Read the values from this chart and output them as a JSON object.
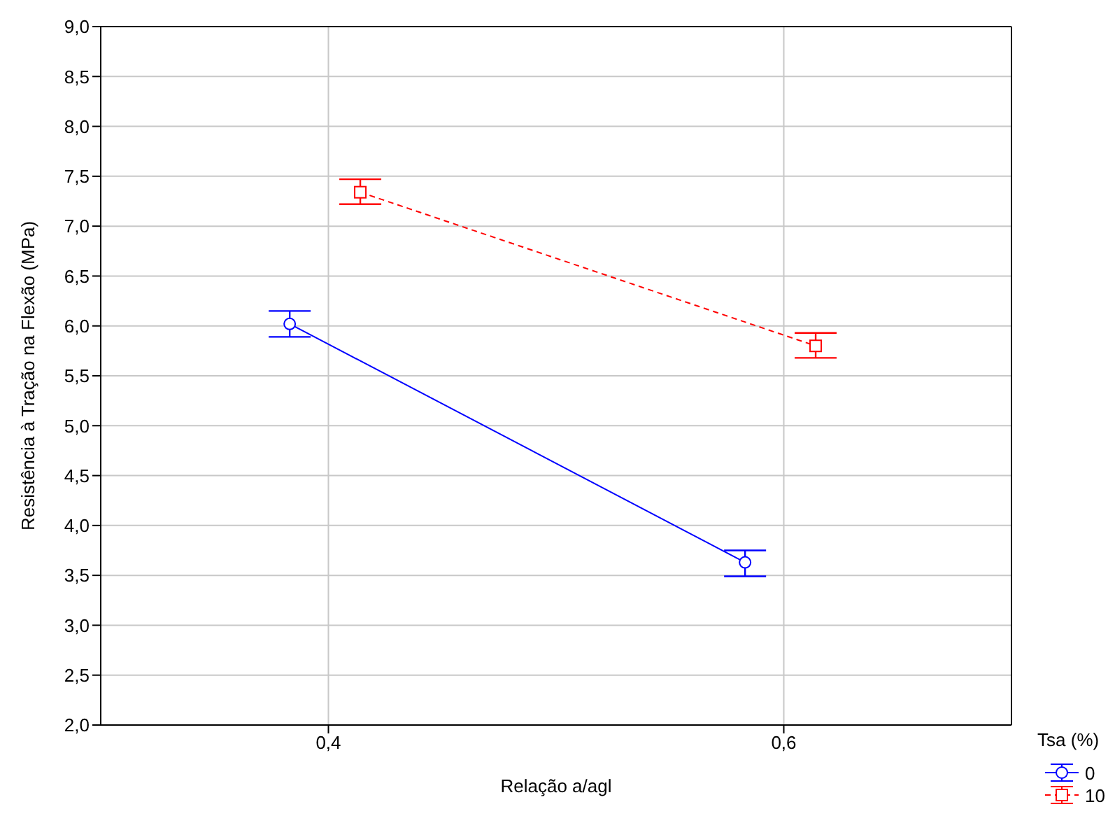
{
  "chart_data": {
    "type": "line",
    "xlabel": "Relação a/agl",
    "ylabel": "Resistência à Tração na Flexão (MPa)",
    "legend_title": "Tsa (%)",
    "xlim": [
      0.3,
      0.7
    ],
    "xticks": [
      {
        "value": 0.4,
        "label": "0,4"
      },
      {
        "value": 0.6,
        "label": "0,6"
      }
    ],
    "ylim": [
      2,
      9
    ],
    "yticks": [
      {
        "value": 2,
        "label": "2,0"
      },
      {
        "value": 2.5,
        "label": "2,5"
      },
      {
        "value": 3,
        "label": "3,0"
      },
      {
        "value": 3.5,
        "label": "3,5"
      },
      {
        "value": 4,
        "label": "4,0"
      },
      {
        "value": 4.5,
        "label": "4,5"
      },
      {
        "value": 5,
        "label": "5,0"
      },
      {
        "value": 5.5,
        "label": "5,5"
      },
      {
        "value": 6,
        "label": "6,0"
      },
      {
        "value": 6.5,
        "label": "6,5"
      },
      {
        "value": 7,
        "label": "7,0"
      },
      {
        "value": 7.5,
        "label": "7,5"
      },
      {
        "value": 8,
        "label": "8,0"
      },
      {
        "value": 8.5,
        "label": "8,5"
      },
      {
        "value": 9,
        "label": "9,0"
      }
    ],
    "grid": true,
    "legend": "bottom right",
    "series": [
      {
        "name": "0",
        "color": "#0000ff",
        "x": [
          0.383,
          0.583
        ],
        "values": [
          6.02,
          3.63
        ],
        "errors": [
          [
            5.89,
            6.15
          ],
          [
            3.49,
            3.75
          ]
        ],
        "marker": "circle",
        "line_style": "solid"
      },
      {
        "name": "10",
        "color": "#ff0000",
        "x": [
          0.414,
          0.614
        ],
        "values": [
          7.34,
          5.8
        ],
        "errors": [
          [
            7.22,
            7.47
          ],
          [
            5.68,
            5.93
          ]
        ],
        "marker": "square",
        "line_style": "dashed"
      }
    ]
  }
}
